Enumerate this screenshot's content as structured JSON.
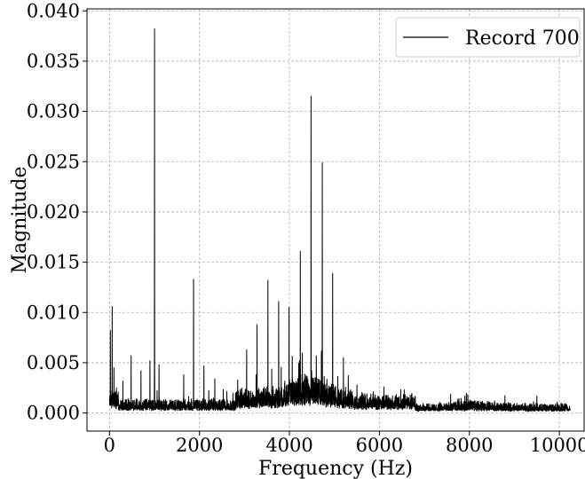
{
  "chart_data": {
    "type": "line",
    "title": "",
    "xlabel": "Frequency (Hz)",
    "ylabel": "Magnitude",
    "xlim": [
      -500,
      10550
    ],
    "ylim": [
      -0.0018,
      0.0402
    ],
    "xticks": [
      0,
      2000,
      4000,
      6000,
      8000,
      10000
    ],
    "xtick_labels": [
      "0",
      "2000",
      "4000",
      "6000",
      "8000",
      "10000"
    ],
    "yticks": [
      0.0,
      0.005,
      0.01,
      0.015,
      0.02,
      0.025,
      0.03,
      0.035,
      0.04
    ],
    "ytick_labels": [
      "0.000",
      "0.005",
      "0.010",
      "0.015",
      "0.020",
      "0.025",
      "0.030",
      "0.035",
      "0.040"
    ],
    "grid": true,
    "legend_position": "top-right",
    "series": [
      {
        "name": "Record 700",
        "color": "#000000",
        "x_range": [
          0,
          10240
        ],
        "peaks": [
          {
            "x": 20,
            "y": 0.0082
          },
          {
            "x": 60,
            "y": 0.0106
          },
          {
            "x": 100,
            "y": 0.0045
          },
          {
            "x": 300,
            "y": 0.0032
          },
          {
            "x": 480,
            "y": 0.0057
          },
          {
            "x": 700,
            "y": 0.0042
          },
          {
            "x": 900,
            "y": 0.0052
          },
          {
            "x": 1000,
            "y": 0.0382
          },
          {
            "x": 1100,
            "y": 0.0048
          },
          {
            "x": 1650,
            "y": 0.0038
          },
          {
            "x": 1870,
            "y": 0.0133
          },
          {
            "x": 2100,
            "y": 0.0047
          },
          {
            "x": 2340,
            "y": 0.0034
          },
          {
            "x": 2850,
            "y": 0.0033
          },
          {
            "x": 3050,
            "y": 0.0063
          },
          {
            "x": 3280,
            "y": 0.0088
          },
          {
            "x": 3520,
            "y": 0.0132
          },
          {
            "x": 3760,
            "y": 0.0111
          },
          {
            "x": 3990,
            "y": 0.0105
          },
          {
            "x": 4240,
            "y": 0.0161
          },
          {
            "x": 4480,
            "y": 0.0315
          },
          {
            "x": 4730,
            "y": 0.0249
          },
          {
            "x": 4960,
            "y": 0.0139
          },
          {
            "x": 5200,
            "y": 0.0055
          },
          {
            "x": 5500,
            "y": 0.0028
          },
          {
            "x": 6100,
            "y": 0.0026
          },
          {
            "x": 6550,
            "y": 0.0023
          },
          {
            "x": 7900,
            "y": 0.0017
          },
          {
            "x": 9500,
            "y": 0.0017
          }
        ]
      }
    ]
  }
}
